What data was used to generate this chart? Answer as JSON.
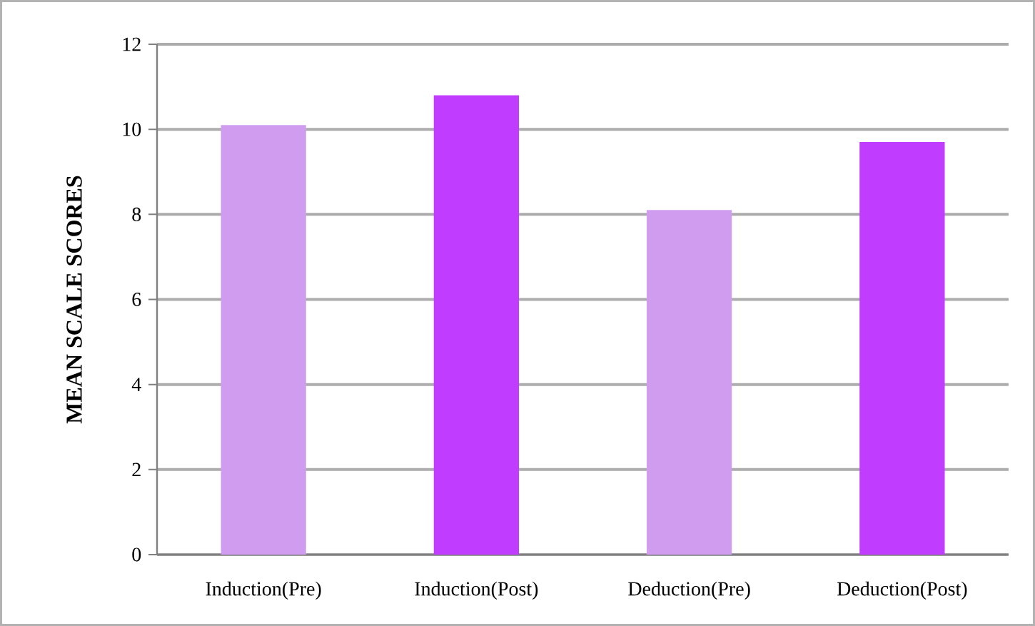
{
  "chart_data": {
    "type": "bar",
    "ylabel": "MEAN SCALE SCORES",
    "categories": [
      "Induction(Pre)",
      "Induction(Post)",
      "Deduction(Pre)",
      "Deduction(Post)"
    ],
    "values": [
      10.1,
      10.8,
      8.1,
      9.7
    ],
    "colors": [
      "#d09cf0",
      "#c03cff",
      "#d09cf0",
      "#c03cff"
    ],
    "ylim": [
      0,
      12
    ],
    "yticks": [
      0,
      2,
      4,
      6,
      8,
      10,
      12
    ],
    "grid": "y"
  }
}
